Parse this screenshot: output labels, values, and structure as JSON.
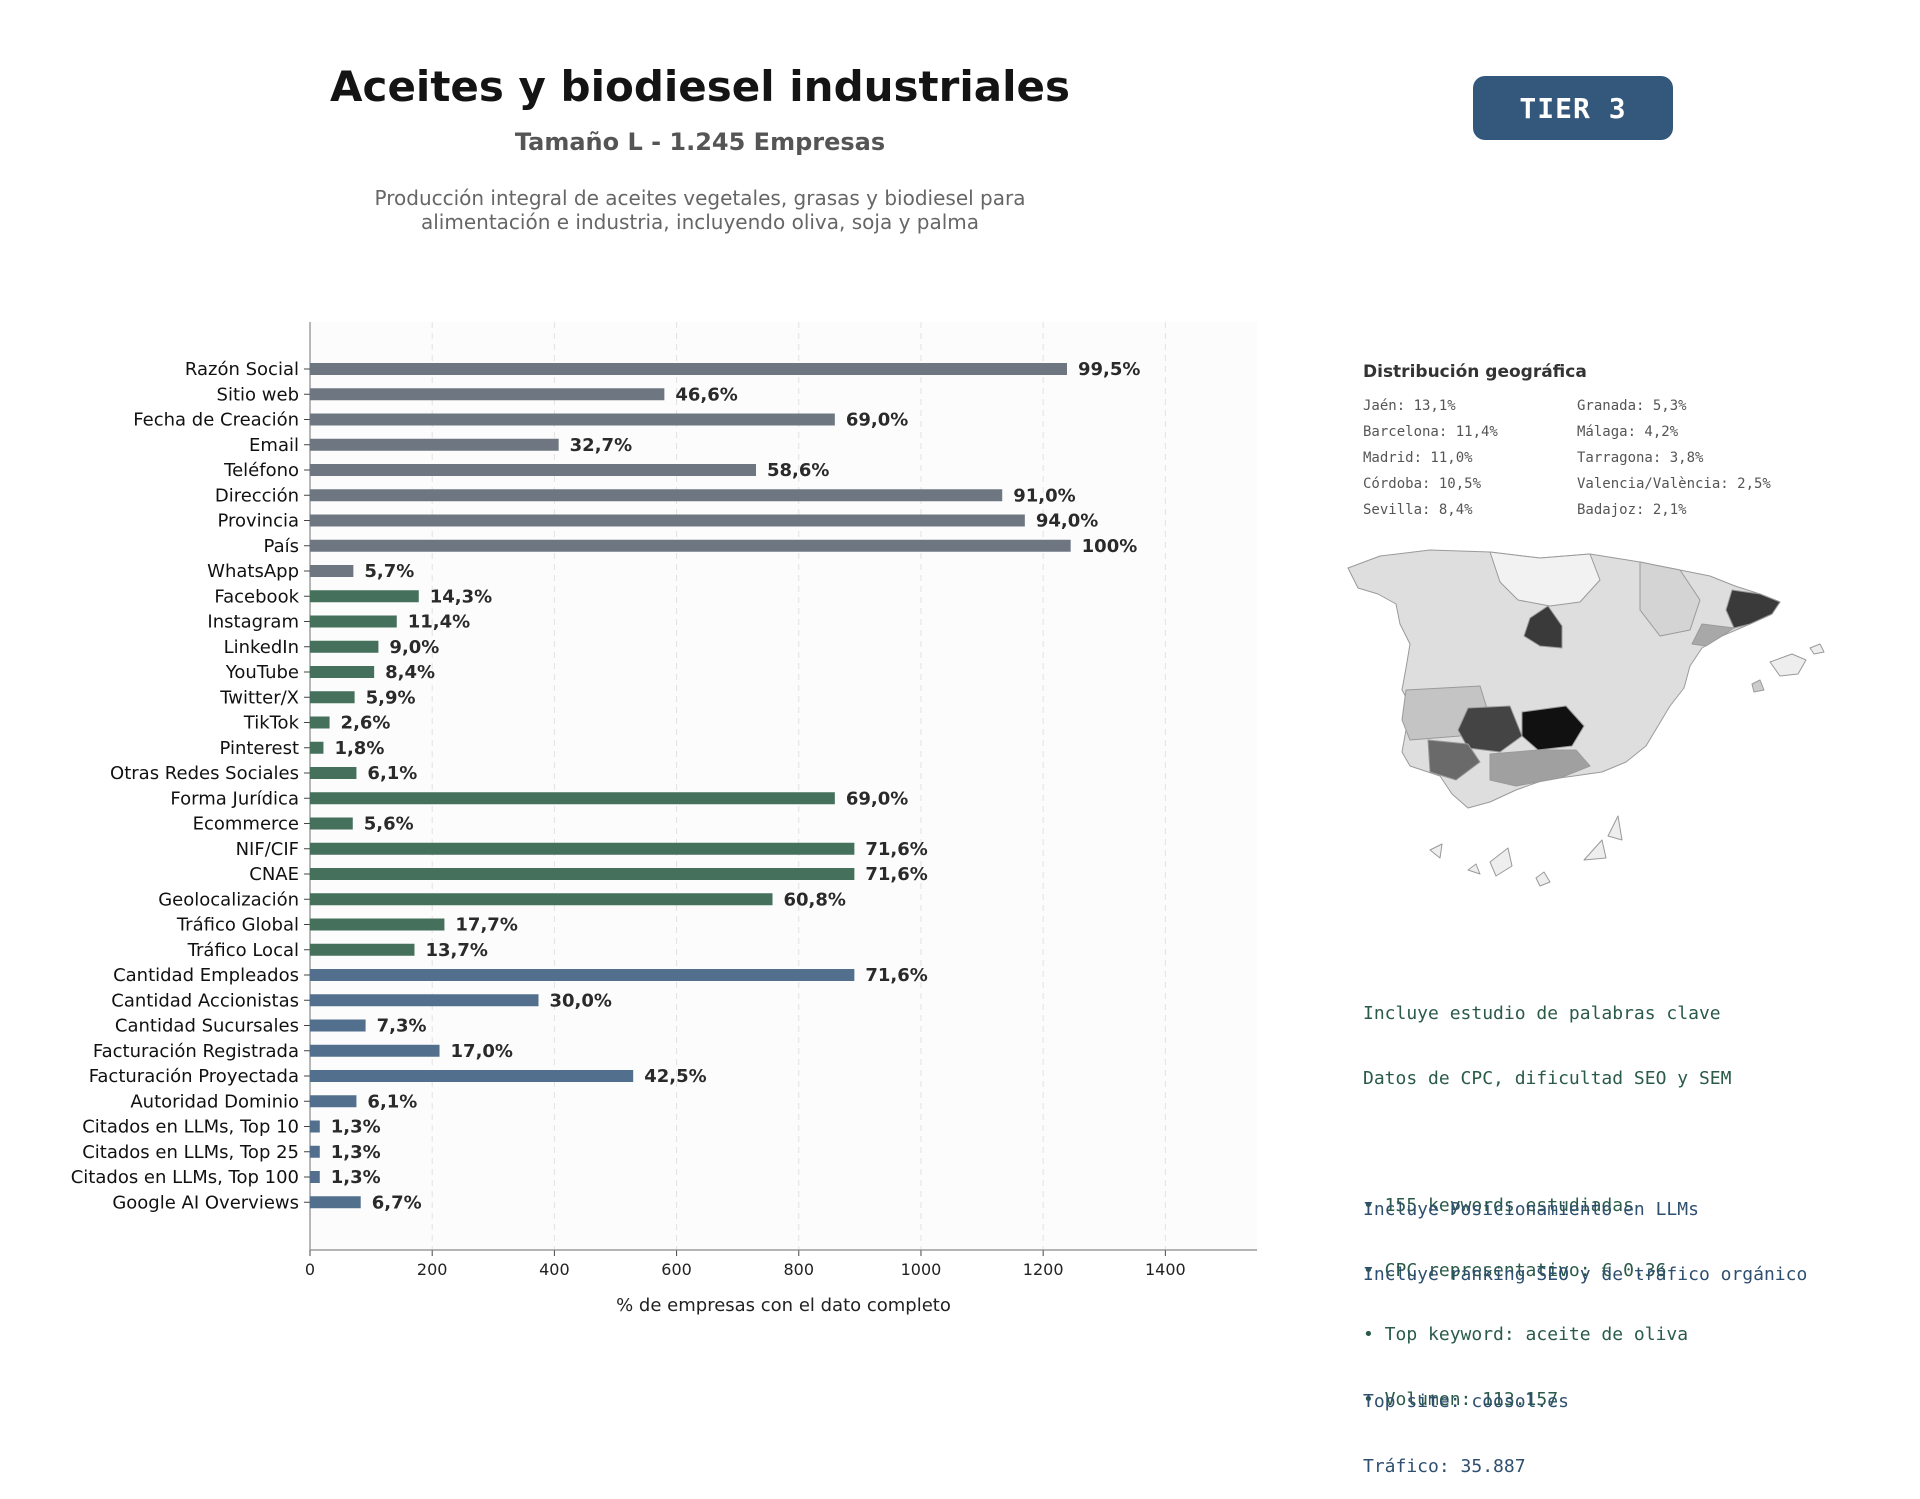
{
  "header": {
    "title": "Aceites y biodiesel industriales",
    "subtitle": "Tamaño L - 1.245 Empresas",
    "description_line1": "Producción integral de aceites vegetales, grasas y biodiesel para",
    "description_line2": "alimentación e industria, incluyendo oliva, soja y palma",
    "tier_label": "TIER 3"
  },
  "chart_data": {
    "type": "bar",
    "orientation": "horizontal",
    "xlabel": "% de empresas con el dato completo",
    "xlim": [
      0,
      1550
    ],
    "xticks": [
      0,
      200,
      400,
      600,
      800,
      1000,
      1200,
      1400
    ],
    "grid": "vertical dashed",
    "categories": [
      "Razón Social",
      "Sitio web",
      "Fecha de Creación",
      "Email",
      "Teléfono",
      "Dirección",
      "Provincia",
      "País",
      "WhatsApp",
      "Facebook",
      "Instagram",
      "LinkedIn",
      "YouTube",
      "Twitter/X",
      "TikTok",
      "Pinterest",
      "Otras Redes Sociales",
      "Forma Jurídica",
      "Ecommerce",
      "NIF/CIF",
      "CNAE",
      "Geolocalización",
      "Tráfico Global",
      "Tráfico Local",
      "Cantidad Empleados",
      "Cantidad Accionistas",
      "Cantidad Sucursales",
      "Facturación Registrada",
      "Facturación Proyectada",
      "Autoridad Dominio",
      "Citados en LLMs, Top 10",
      "Citados en LLMs, Top 25",
      "Citados en LLMs, Top 100",
      "Google AI Overviews"
    ],
    "values": [
      1239,
      580,
      859,
      407,
      730,
      1133,
      1170,
      1245,
      71,
      178,
      142,
      112,
      105,
      73,
      32,
      22,
      76,
      859,
      70,
      891,
      891,
      757,
      220,
      171,
      891,
      374,
      91,
      212,
      529,
      76,
      16,
      16,
      16,
      83
    ],
    "labels": [
      "99,5%",
      "46,6%",
      "69,0%",
      "32,7%",
      "58,6%",
      "91,0%",
      "94,0%",
      "100%",
      "5,7%",
      "14,3%",
      "11,4%",
      "9,0%",
      "8,4%",
      "5,9%",
      "2,6%",
      "1,8%",
      "6,1%",
      "69,0%",
      "5,6%",
      "71,6%",
      "71,6%",
      "60,8%",
      "17,7%",
      "13,7%",
      "71,6%",
      "30,0%",
      "7,3%",
      "17,0%",
      "42,5%",
      "6,1%",
      "1,3%",
      "1,3%",
      "1,3%",
      "6,7%"
    ],
    "groups": [
      "contact",
      "contact",
      "contact",
      "contact",
      "contact",
      "contact",
      "contact",
      "contact",
      "contact",
      "social",
      "social",
      "social",
      "social",
      "social",
      "social",
      "social",
      "social",
      "business",
      "business",
      "business",
      "business",
      "business",
      "business",
      "business",
      "financial",
      "financial",
      "financial",
      "financial",
      "financial",
      "financial",
      "financial",
      "financial",
      "financial",
      "financial"
    ],
    "colors": {
      "contact": "#6e7781",
      "social": "#45705c",
      "business": "#45705c",
      "financial": "#52708e"
    }
  },
  "geo": {
    "title": "Distribución geográfica",
    "items": [
      "Jaén: 13,1%",
      "Barcelona: 11,4%",
      "Madrid: 11,0%",
      "Córdoba: 10,5%",
      "Sevilla: 8,4%",
      "Granada: 5,3%",
      "Málaga: 4,2%",
      "Tarragona: 3,8%",
      "Valencia/València: 2,5%",
      "Badajoz: 2,1%"
    ]
  },
  "keywords": {
    "line1": "Incluye estudio de palabras clave",
    "line2": "Datos de CPC, dificultad SEO y SEM",
    "bullet1": "• 155 keywords estudiadas",
    "bullet2": "• CPC representativo: € 0.36",
    "bullet3": "• Top keyword: aceite de oliva",
    "bullet4": "• Volumen: 113.157"
  },
  "llm": {
    "line1": "Incluye Posicionamiento en LLMs",
    "line2": "Incluye ranking SEO y de tráfico orgánico",
    "top_site": "Top site: coosol.es",
    "traffic": "Tráfico: 35.887"
  }
}
